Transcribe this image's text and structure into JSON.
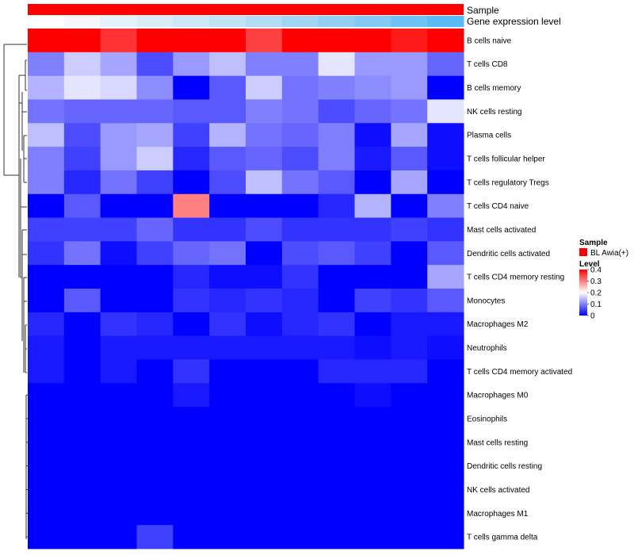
{
  "chart_data": {
    "type": "heatmap",
    "title": "",
    "annotation_tracks": [
      {
        "name": "Sample",
        "color": "#ff0000"
      },
      {
        "name": "Gene expression level",
        "colors": [
          "#ffffff",
          "#f4f8fb",
          "#e6f2f9",
          "#d9ecf7",
          "#cde7f6",
          "#bfe2f5",
          "#b1dcf4",
          "#a2d5f4",
          "#92cff4",
          "#82c9f5",
          "#6fc2f6",
          "#58bbf6",
          "#3fb3f7"
        ]
      }
    ],
    "rows": [
      "B cells naive",
      "T cells CD8",
      "B cells memory",
      "NK cells resting",
      "Plasma cells",
      "T cells follicular helper",
      "T cells regulatory  Tregs",
      "T cells CD4 naive",
      "Mast cells activated",
      "Dendritic cells activated",
      "T cells CD4 memory resting",
      "Monocytes",
      "Macrophages M2",
      "Neutrophils",
      "T cells CD4 memory activated",
      "Macrophages M0",
      "Eosinophils",
      "Mast cells resting",
      "Dendritic cells resting",
      "NK cells activated",
      "Macrophages M1",
      "T cells gamma delta"
    ],
    "n_columns": 12,
    "values": [
      [
        0.44,
        0.46,
        0.36,
        0.45,
        0.49,
        0.49,
        0.35,
        0.5,
        0.4,
        0.5,
        0.38,
        0.5
      ],
      [
        0.1,
        0.16,
        0.13,
        0.06,
        0.12,
        0.15,
        0.1,
        0.1,
        0.18,
        0.12,
        0.12,
        0.08
      ],
      [
        0.14,
        0.18,
        0.17,
        0.11,
        0.0,
        0.07,
        0.16,
        0.09,
        0.1,
        0.11,
        0.12,
        0.0
      ],
      [
        0.09,
        0.08,
        0.08,
        0.08,
        0.07,
        0.07,
        0.1,
        0.09,
        0.06,
        0.08,
        0.09,
        0.18
      ],
      [
        0.15,
        0.06,
        0.12,
        0.13,
        0.05,
        0.14,
        0.09,
        0.08,
        0.1,
        0.01,
        0.13,
        0.01
      ],
      [
        0.1,
        0.05,
        0.12,
        0.16,
        0.03,
        0.07,
        0.08,
        0.06,
        0.1,
        0.02,
        0.07,
        0.01
      ],
      [
        0.1,
        0.03,
        0.09,
        0.05,
        0.0,
        0.06,
        0.15,
        0.09,
        0.07,
        0.0,
        0.13,
        0.0
      ],
      [
        0.0,
        0.07,
        0.0,
        0.0,
        0.3,
        0.0,
        0.0,
        0.0,
        0.03,
        0.14,
        0.0,
        0.1
      ],
      [
        0.05,
        0.05,
        0.05,
        0.08,
        0.04,
        0.04,
        0.06,
        0.04,
        0.04,
        0.04,
        0.05,
        0.04
      ],
      [
        0.04,
        0.09,
        0.01,
        0.05,
        0.08,
        0.09,
        0.0,
        0.06,
        0.07,
        0.05,
        0.0,
        0.07
      ],
      [
        0.0,
        0.0,
        0.0,
        0.0,
        0.03,
        0.01,
        0.01,
        0.04,
        0.0,
        0.0,
        0.0,
        0.13
      ],
      [
        0.0,
        0.07,
        0.0,
        0.0,
        0.04,
        0.03,
        0.04,
        0.03,
        0.0,
        0.05,
        0.04,
        0.07
      ],
      [
        0.03,
        0.0,
        0.04,
        0.03,
        0.0,
        0.04,
        0.01,
        0.03,
        0.04,
        0.0,
        0.02,
        0.02
      ],
      [
        0.02,
        0.0,
        0.02,
        0.02,
        0.02,
        0.02,
        0.02,
        0.02,
        0.02,
        0.01,
        0.02,
        0.01
      ],
      [
        0.02,
        0.0,
        0.02,
        0.0,
        0.04,
        0.0,
        0.0,
        0.0,
        0.03,
        0.03,
        0.03,
        0.0
      ],
      [
        0.0,
        0.0,
        0.0,
        0.0,
        0.02,
        0.0,
        0.0,
        0.0,
        0.0,
        0.01,
        0.0,
        0.0
      ],
      [
        0.0,
        0.0,
        0.0,
        0.0,
        0.0,
        0.0,
        0.0,
        0.0,
        0.0,
        0.0,
        0.0,
        0.0
      ],
      [
        0.0,
        0.0,
        0.0,
        0.0,
        0.0,
        0.0,
        0.0,
        0.0,
        0.0,
        0.0,
        0.0,
        0.0
      ],
      [
        0.0,
        0.0,
        0.0,
        0.0,
        0.0,
        0.0,
        0.0,
        0.0,
        0.0,
        0.0,
        0.0,
        0.0
      ],
      [
        0.0,
        0.0,
        0.0,
        0.0,
        0.0,
        0.0,
        0.0,
        0.0,
        0.0,
        0.0,
        0.0,
        0.0
      ],
      [
        0.0,
        0.0,
        0.0,
        0.0,
        0.0,
        0.0,
        0.0,
        0.0,
        0.0,
        0.0,
        0.0,
        0.0
      ],
      [
        0.0,
        0.0,
        0.0,
        0.05,
        0.0,
        0.0,
        0.0,
        0.0,
        0.0,
        0.0,
        0.0,
        0.0
      ]
    ],
    "color_scale": {
      "stops": [
        {
          "value": 0,
          "color": "#0000ff"
        },
        {
          "value": 0.2,
          "color": "#ffffff"
        },
        {
          "value": 0.4,
          "color": "#ff0000"
        }
      ],
      "domain": [
        0,
        0.5
      ]
    },
    "legend": {
      "sample_title": "Sample",
      "sample_entry": "BL Awia(+)",
      "sample_color": "#ff0000",
      "level_title": "Level",
      "level_ticks": [
        "0.4",
        "0.3",
        "0.2",
        "0.1",
        "0"
      ],
      "level_tick_values": [
        0.4,
        0.3,
        0.2,
        0.1,
        0
      ]
    },
    "row_dendrogram": true,
    "column_dendrogram": false
  }
}
